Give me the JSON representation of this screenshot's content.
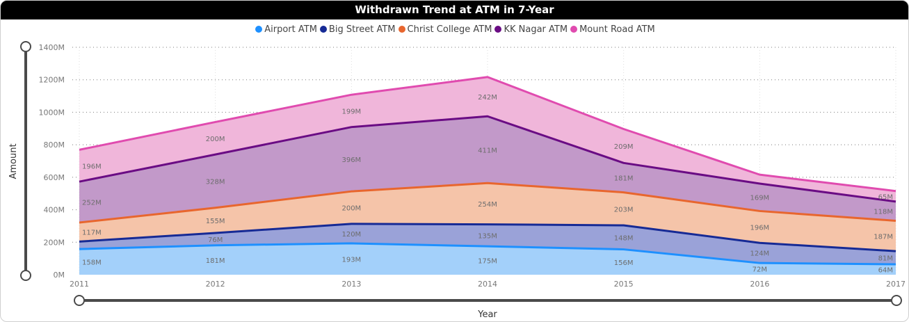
{
  "chart_data": {
    "type": "area",
    "stacked": true,
    "title": "Withdrawn Trend at ATM in 7-Year",
    "xlabel": "Year",
    "ylabel": "Amount",
    "categories": [
      "2011",
      "2012",
      "2013",
      "2014",
      "2015",
      "2016",
      "2017"
    ],
    "ylim": [
      0,
      1400
    ],
    "y_ticks": [
      "0M",
      "200M",
      "400M",
      "600M",
      "800M",
      "1000M",
      "1200M",
      "1400M"
    ],
    "legend_position": "top-center",
    "grid": "horizontal dotted",
    "series": [
      {
        "name": "Airport ATM",
        "color": "#1E90FF",
        "fill": "#A3D0FA",
        "values": [
          158,
          181,
          193,
          175,
          156,
          72,
          64
        ],
        "labels": [
          "158M",
          "181M",
          "193M",
          "175M",
          "156M",
          "72M",
          "64M"
        ]
      },
      {
        "name": "Big Street ATM",
        "color": "#162A95",
        "fill": "#9AA2D8",
        "values": [
          46,
          76,
          120,
          135,
          148,
          124,
          81
        ],
        "labels": [
          "",
          "76M",
          "120M",
          "135M",
          "148M",
          "124M",
          "81M"
        ]
      },
      {
        "name": "Christ College ATM",
        "color": "#E8662E",
        "fill": "#F5C4A9",
        "values": [
          117,
          155,
          200,
          254,
          203,
          196,
          187
        ],
        "labels": [
          "117M",
          "155M",
          "200M",
          "254M",
          "203M",
          "196M",
          "187M"
        ]
      },
      {
        "name": "KK Nagar ATM",
        "color": "#6A0C84",
        "fill": "#C299C9",
        "values": [
          252,
          328,
          396,
          411,
          181,
          169,
          118
        ],
        "labels": [
          "252M",
          "328M",
          "396M",
          "411M",
          "181M",
          "169M",
          "118M"
        ]
      },
      {
        "name": "Mount Road ATM",
        "color": "#E04BAF",
        "fill": "#F0B6DA",
        "values": [
          196,
          200,
          199,
          242,
          209,
          55,
          65
        ],
        "labels": [
          "196M",
          "200M",
          "199M",
          "242M",
          "209M",
          "",
          "65M"
        ]
      }
    ]
  }
}
